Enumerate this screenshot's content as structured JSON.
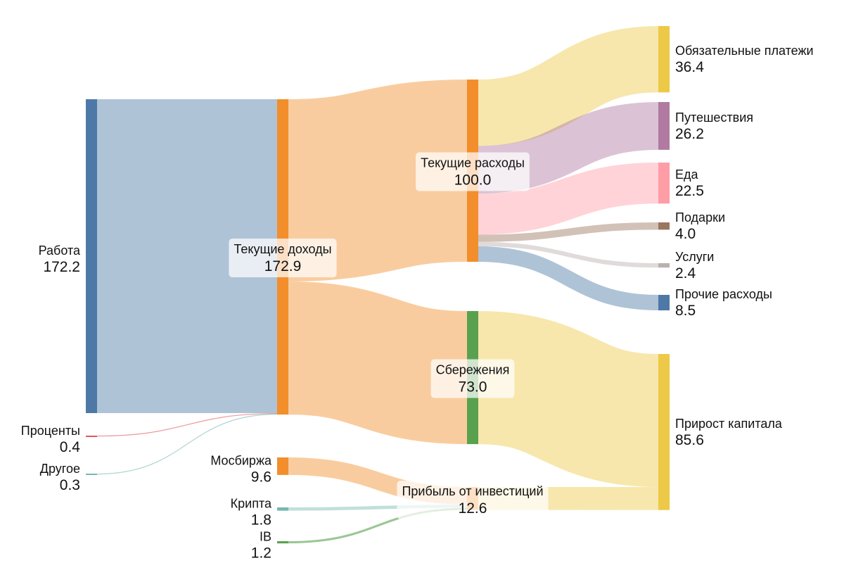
{
  "chart_data": {
    "type": "sankey",
    "colors": {
      "blue": "#4e79a7",
      "orange": "#f28e2b",
      "green": "#59a14f",
      "yellow": "#edc948",
      "purple": "#b07aa1",
      "pink": "#ff9da7",
      "brown": "#9c755f",
      "gray": "#bab0ac",
      "red": "#e15759",
      "teal": "#76b7b2"
    },
    "nodes": [
      {
        "id": "work",
        "label": "Работа",
        "value": "172.2",
        "color": "blue"
      },
      {
        "id": "interest",
        "label": "Проценты",
        "value": "0.4",
        "color": "red"
      },
      {
        "id": "other",
        "label": "Другое",
        "value": "0.3",
        "color": "teal"
      },
      {
        "id": "income",
        "label": "Текущие доходы",
        "value": "172.9",
        "color": "orange"
      },
      {
        "id": "moex",
        "label": "Мосбиржа",
        "value": "9.6",
        "color": "orange"
      },
      {
        "id": "crypto",
        "label": "Крипта",
        "value": "1.8",
        "color": "teal"
      },
      {
        "id": "ib",
        "label": "IB",
        "value": "1.2",
        "color": "green"
      },
      {
        "id": "expenses",
        "label": "Текущие расходы",
        "value": "100.0",
        "color": "orange"
      },
      {
        "id": "savings",
        "label": "Сбережения",
        "value": "73.0",
        "color": "green"
      },
      {
        "id": "invprofit",
        "label": "Прибыль от инвестиций",
        "value": "12.6",
        "color": "orange"
      },
      {
        "id": "mandatory",
        "label": "Обязательные платежи",
        "value": "36.4",
        "color": "yellow"
      },
      {
        "id": "travel",
        "label": "Путешествия",
        "value": "26.2",
        "color": "purple"
      },
      {
        "id": "food",
        "label": "Еда",
        "value": "22.5",
        "color": "pink"
      },
      {
        "id": "gifts",
        "label": "Подарки",
        "value": "4.0",
        "color": "brown"
      },
      {
        "id": "services",
        "label": "Услуги",
        "value": "2.4",
        "color": "gray"
      },
      {
        "id": "otherexp",
        "label": "Прочие расходы",
        "value": "8.5",
        "color": "blue"
      },
      {
        "id": "capital",
        "label": "Прирост капитала",
        "value": "85.6",
        "color": "yellow"
      }
    ],
    "links": [
      {
        "source": "work",
        "target": "income",
        "value": 172.2
      },
      {
        "source": "interest",
        "target": "income",
        "value": 0.4
      },
      {
        "source": "other",
        "target": "income",
        "value": 0.3
      },
      {
        "source": "income",
        "target": "expenses",
        "value": 100.0
      },
      {
        "source": "income",
        "target": "savings",
        "value": 73.0
      },
      {
        "source": "moex",
        "target": "invprofit",
        "value": 9.6
      },
      {
        "source": "crypto",
        "target": "invprofit",
        "value": 1.8
      },
      {
        "source": "ib",
        "target": "invprofit",
        "value": 1.2
      },
      {
        "source": "expenses",
        "target": "mandatory",
        "value": 36.4
      },
      {
        "source": "expenses",
        "target": "travel",
        "value": 26.2
      },
      {
        "source": "expenses",
        "target": "food",
        "value": 22.5
      },
      {
        "source": "expenses",
        "target": "gifts",
        "value": 4.0
      },
      {
        "source": "expenses",
        "target": "services",
        "value": 2.4
      },
      {
        "source": "expenses",
        "target": "otherexp",
        "value": 8.5
      },
      {
        "source": "savings",
        "target": "capital",
        "value": 73.0
      },
      {
        "source": "invprofit",
        "target": "capital",
        "value": 12.6
      }
    ]
  }
}
